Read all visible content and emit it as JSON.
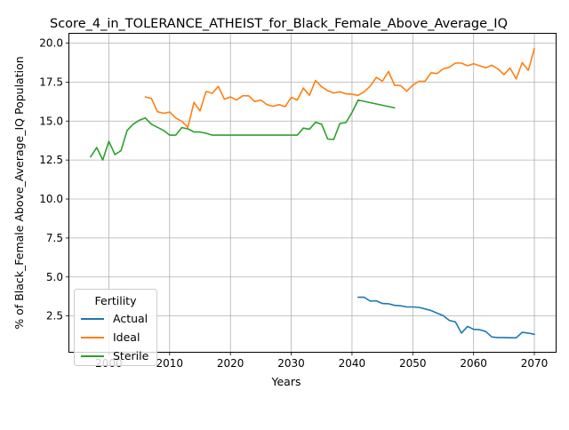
{
  "chart_data": {
    "type": "line",
    "title": "Score_4_in_TOLERANCE_ATHEIST_for_Black_Female_Above_Average_IQ",
    "xlabel": "Years",
    "ylabel": "% of Black_Female Above_Average_IQ Population",
    "xlim": [
      1993.5,
      2073.5
    ],
    "ylim": [
      0.2,
      20.6
    ],
    "xticks": [
      2000,
      2010,
      2020,
      2030,
      2040,
      2050,
      2060,
      2070
    ],
    "yticks": [
      2.5,
      5.0,
      7.5,
      10.0,
      12.5,
      15.0,
      17.5,
      20.0
    ],
    "ytick_labels": [
      "2.5",
      "5.0",
      "7.5",
      "10.0",
      "12.5",
      "15.0",
      "17.5",
      "20.0"
    ],
    "grid": true,
    "legend": {
      "title": "Fertility",
      "placement": "lower-left"
    },
    "series": [
      {
        "name": "Actual",
        "color": "#1f77b4",
        "x": [
          2041,
          2042,
          2043,
          2044,
          2045,
          2046,
          2047,
          2048,
          2049,
          2050,
          2051,
          2052,
          2053,
          2054,
          2055,
          2056,
          2057,
          2058,
          2059,
          2060,
          2061,
          2062,
          2063,
          2064,
          2065,
          2066,
          2067,
          2068,
          2069,
          2070
        ],
        "y": [
          3.7,
          3.7,
          3.45,
          3.47,
          3.3,
          3.28,
          3.18,
          3.15,
          3.08,
          3.08,
          3.05,
          2.95,
          2.85,
          2.68,
          2.52,
          2.22,
          2.12,
          1.4,
          1.83,
          1.64,
          1.62,
          1.5,
          1.15,
          1.12,
          1.12,
          1.1,
          1.1,
          1.45,
          1.4,
          1.32
        ]
      },
      {
        "name": "Ideal",
        "color": "#ff7f0e",
        "x": [
          2006,
          2007,
          2008,
          2009,
          2010,
          2011,
          2012,
          2013,
          2014,
          2015,
          2016,
          2017,
          2018,
          2019,
          2020,
          2021,
          2022,
          2023,
          2024,
          2025,
          2026,
          2027,
          2028,
          2029,
          2030,
          2031,
          2032,
          2033,
          2034,
          2035,
          2036,
          2037,
          2038,
          2039,
          2040,
          2041,
          2042,
          2043,
          2044,
          2045,
          2046,
          2047,
          2048,
          2049,
          2050,
          2051,
          2052,
          2053,
          2054,
          2055,
          2056,
          2057,
          2058,
          2059,
          2060,
          2061,
          2062,
          2063,
          2064,
          2065,
          2066,
          2067,
          2068,
          2069,
          2070
        ],
        "y": [
          16.55,
          16.45,
          15.6,
          15.5,
          15.58,
          15.2,
          14.98,
          14.6,
          16.2,
          15.65,
          16.9,
          16.78,
          17.22,
          16.4,
          16.55,
          16.35,
          16.62,
          16.62,
          16.25,
          16.35,
          16.05,
          15.95,
          16.05,
          15.92,
          16.52,
          16.35,
          17.12,
          16.65,
          17.6,
          17.2,
          16.95,
          16.8,
          16.88,
          16.75,
          16.72,
          16.65,
          16.88,
          17.25,
          17.8,
          17.55,
          18.18,
          17.3,
          17.28,
          16.92,
          17.3,
          17.55,
          17.55,
          18.1,
          18.05,
          18.35,
          18.45,
          18.72,
          18.72,
          18.55,
          18.68,
          18.55,
          18.42,
          18.58,
          18.35,
          17.98,
          18.4,
          17.7,
          18.75,
          18.25,
          19.65
        ]
      },
      {
        "name": "Sterile",
        "color": "#2ca02c",
        "x": [
          1997,
          1998,
          1999,
          2000,
          2001,
          2002,
          2003,
          2004,
          2005,
          2006,
          2007,
          2008,
          2009,
          2010,
          2011,
          2012,
          2013,
          2014,
          2015,
          2016,
          2017,
          2018,
          2019,
          2020,
          2021,
          2022,
          2023,
          2024,
          2025,
          2026,
          2027,
          2028,
          2029,
          2030,
          2031,
          2032,
          2033,
          2034,
          2035,
          2036,
          2037,
          2038,
          2039,
          2040,
          2041,
          2047
        ],
        "y": [
          12.7,
          13.3,
          12.5,
          13.7,
          12.85,
          13.1,
          14.4,
          14.8,
          15.05,
          15.2,
          14.8,
          14.6,
          14.4,
          14.1,
          14.1,
          14.58,
          14.5,
          14.3,
          14.3,
          14.22,
          14.1,
          14.1,
          14.1,
          14.1,
          14.1,
          14.1,
          14.1,
          14.1,
          14.1,
          14.1,
          14.1,
          14.1,
          14.1,
          14.1,
          14.1,
          14.55,
          14.48,
          14.92,
          14.8,
          13.85,
          13.82,
          14.85,
          14.9,
          15.55,
          16.35,
          15.85
        ]
      }
    ]
  }
}
